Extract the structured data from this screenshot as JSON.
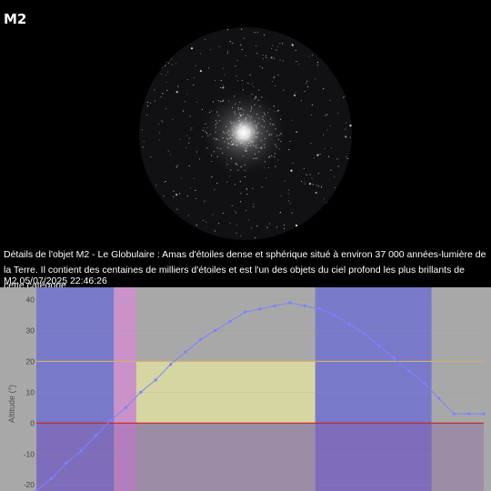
{
  "header": {
    "title": "M2"
  },
  "photo": {
    "icon": "globular-cluster-image"
  },
  "description": "Détails de l'objet M2 - Le Globulaire : Amas d'étoiles dense et sphérique situé à environ 37 000 années-lumière de la Terre. Il contient des centaines de milliers d'étoiles et est l'un des objets du ciel profond les plus brillants de cette catégorie.",
  "timestamp": "M2 05/07/2025 22:46:26",
  "chart_data": {
    "type": "line",
    "ylabel": "Altitude (°)",
    "yticks": [
      40,
      30,
      20,
      10,
      0,
      -10,
      -20
    ],
    "ylim": [
      -22,
      44
    ],
    "x": [
      0,
      1,
      2,
      3,
      4,
      5,
      6,
      7,
      8,
      9,
      10,
      11,
      12,
      13,
      14,
      15,
      16,
      17,
      18,
      19,
      20,
      21,
      22,
      23,
      24,
      25,
      26,
      27,
      28,
      29,
      30
    ],
    "series": [
      {
        "values": [
          -22,
          -18,
          -13,
          -9,
          -4,
          1,
          5,
          10,
          14,
          19,
          23,
          27,
          30,
          33,
          36,
          37,
          38,
          39,
          38,
          37,
          35,
          32,
          29,
          25,
          21,
          17,
          13,
          8,
          3,
          3,
          3
        ]
      }
    ],
    "reference_lines": [
      {
        "value": 0,
        "color": "#cc2222"
      },
      {
        "value": 20,
        "color": "#d4b070"
      }
    ],
    "bands": [
      {
        "x_range": [
          0,
          5.2
        ],
        "color": "#6a6ad6"
      },
      {
        "x_range": [
          5.2,
          6.7
        ],
        "color": "#d48cd4"
      },
      {
        "x_range": [
          6.7,
          18.7
        ],
        "y_range": [
          0,
          20
        ],
        "color": "#e6e6a0"
      },
      {
        "x_range": [
          18.7,
          26.5
        ],
        "color": "#6a6ad6"
      }
    ],
    "colors": {
      "background": "#a8a8a8",
      "line": "#8080ff",
      "below_horizon": "#8a5aa0"
    }
  }
}
